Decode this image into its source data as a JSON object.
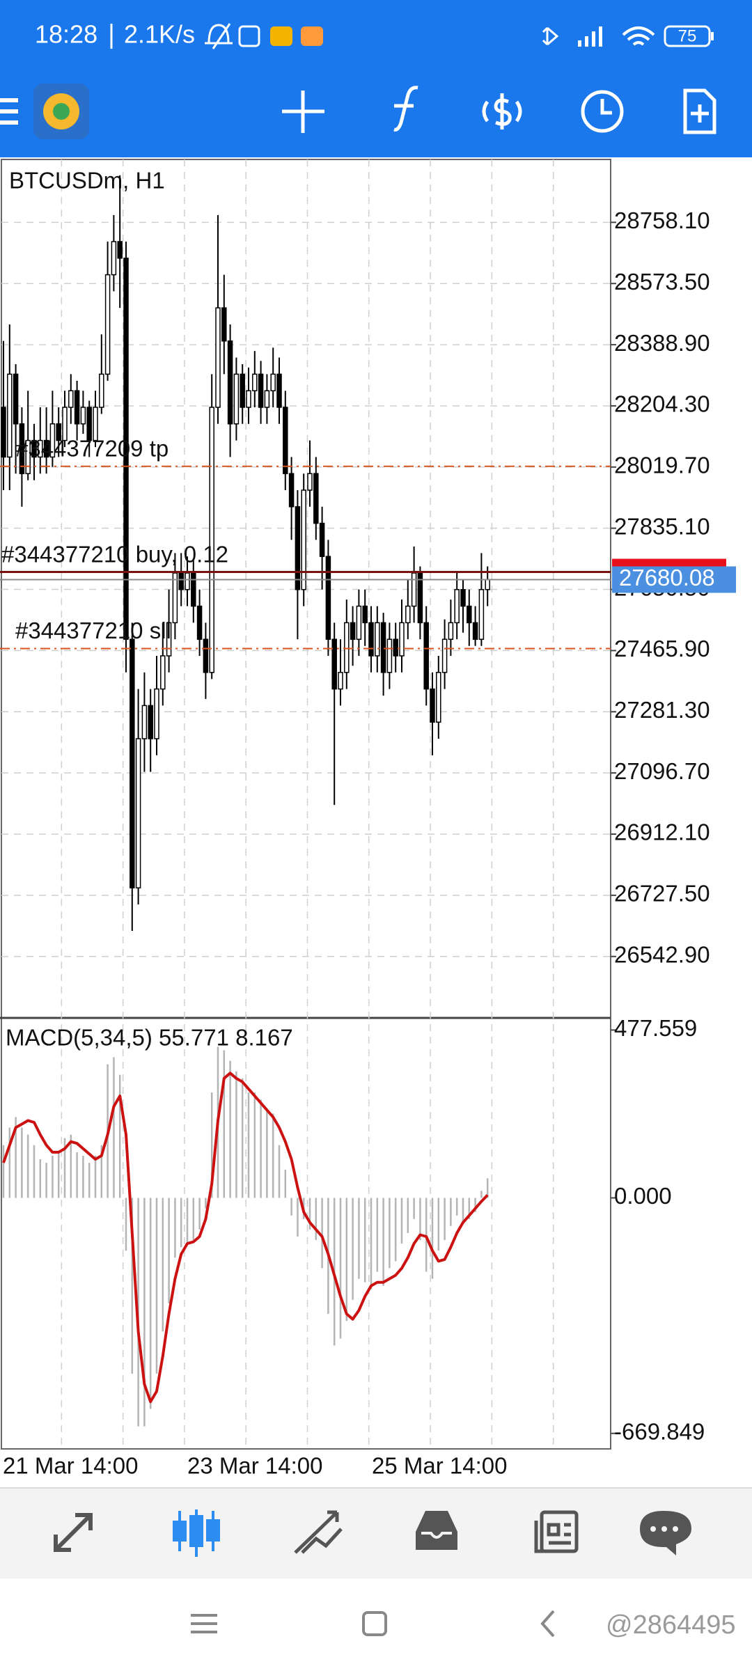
{
  "status_bar": {
    "time": "18:28",
    "network_speed": "2.1K/s",
    "battery": "75"
  },
  "chart_data": [
    {
      "type": "candlestick",
      "title": "BTCUSDm, H1",
      "ohlc": [
        [
          28200,
          28400,
          27950,
          28050
        ],
        [
          28050,
          28450,
          27950,
          28300
        ],
        [
          28300,
          28330,
          28000,
          28150
        ],
        [
          28150,
          28200,
          27900,
          28000
        ],
        [
          28000,
          28250,
          27980,
          28100
        ],
        [
          28100,
          28150,
          27980,
          28050
        ],
        [
          28050,
          28200,
          28000,
          28100
        ],
        [
          28100,
          28200,
          28000,
          28050
        ],
        [
          28050,
          28250,
          28020,
          28150
        ],
        [
          28150,
          28200,
          28050,
          28100
        ],
        [
          28100,
          28250,
          28080,
          28200
        ],
        [
          28200,
          28300,
          28150,
          28250
        ],
        [
          28250,
          28280,
          28100,
          28150
        ],
        [
          28150,
          28250,
          28120,
          28200
        ],
        [
          28200,
          28220,
          28050,
          28100
        ],
        [
          28100,
          28250,
          28080,
          28200
        ],
        [
          28200,
          28420,
          28180,
          28300
        ],
        [
          28300,
          28700,
          28280,
          28600
        ],
        [
          28600,
          28780,
          28550,
          28700
        ],
        [
          28700,
          28900,
          28500,
          28650
        ],
        [
          28650,
          28700,
          27400,
          27500
        ],
        [
          27500,
          27550,
          26620,
          26750
        ],
        [
          26750,
          27350,
          26700,
          27200
        ],
        [
          27200,
          27400,
          27100,
          27300
        ],
        [
          27300,
          27350,
          27100,
          27200
        ],
        [
          27200,
          27450,
          27150,
          27350
        ],
        [
          27350,
          27550,
          27300,
          27450
        ],
        [
          27450,
          27650,
          27400,
          27550
        ],
        [
          27550,
          27760,
          27500,
          27700
        ],
        [
          27700,
          27760,
          27600,
          27650
        ],
        [
          27650,
          27750,
          27600,
          27700
        ],
        [
          27700,
          27740,
          27550,
          27600
        ],
        [
          27600,
          27650,
          27450,
          27500
        ],
        [
          27500,
          27550,
          27320,
          27400
        ],
        [
          27400,
          28300,
          27380,
          28200
        ],
        [
          28200,
          28780,
          28150,
          28500
        ],
        [
          28500,
          28600,
          28300,
          28400
        ],
        [
          28400,
          28450,
          28050,
          28150
        ],
        [
          28150,
          28350,
          28100,
          28300
        ],
        [
          28300,
          28330,
          28150,
          28200
        ],
        [
          28200,
          28320,
          28150,
          28250
        ],
        [
          28250,
          28370,
          28200,
          28300
        ],
        [
          28300,
          28340,
          28150,
          28200
        ],
        [
          28200,
          28300,
          28150,
          28250
        ],
        [
          28250,
          28380,
          28200,
          28300
        ],
        [
          28300,
          28350,
          28150,
          28200
        ],
        [
          28200,
          28250,
          27950,
          28000
        ],
        [
          28000,
          28050,
          27800,
          27900
        ],
        [
          27900,
          27950,
          27500,
          27650
        ],
        [
          27650,
          28000,
          27600,
          27950
        ],
        [
          27950,
          28100,
          27900,
          28000
        ],
        [
          28000,
          28050,
          27800,
          27850
        ],
        [
          27850,
          27900,
          27650,
          27750
        ],
        [
          27750,
          27800,
          27450,
          27500
        ],
        [
          27500,
          27550,
          27000,
          27350
        ],
        [
          27350,
          27500,
          27300,
          27400
        ],
        [
          27400,
          27620,
          27350,
          27550
        ],
        [
          27550,
          27600,
          27420,
          27500
        ],
        [
          27500,
          27650,
          27450,
          27600
        ],
        [
          27600,
          27650,
          27480,
          27550
        ],
        [
          27550,
          27600,
          27400,
          27450
        ],
        [
          27450,
          27600,
          27400,
          27550
        ],
        [
          27550,
          27580,
          27330,
          27400
        ],
        [
          27400,
          27550,
          27350,
          27500
        ],
        [
          27500,
          27550,
          27400,
          27450
        ],
        [
          27450,
          27620,
          27400,
          27550
        ],
        [
          27550,
          27680,
          27500,
          27600
        ],
        [
          27600,
          27780,
          27550,
          27700
        ],
        [
          27700,
          27720,
          27500,
          27550
        ],
        [
          27550,
          27600,
          27300,
          27350
        ],
        [
          27350,
          27400,
          27150,
          27250
        ],
        [
          27250,
          27450,
          27200,
          27400
        ],
        [
          27400,
          27560,
          27350,
          27500
        ],
        [
          27500,
          27620,
          27450,
          27550
        ],
        [
          27550,
          27700,
          27500,
          27650
        ],
        [
          27650,
          27680,
          27520,
          27600
        ],
        [
          27600,
          27650,
          27480,
          27550
        ],
        [
          27550,
          27600,
          27480,
          27500
        ],
        [
          27500,
          27760,
          27480,
          27650
        ],
        [
          27650,
          27720,
          27600,
          27680.08
        ]
      ],
      "up_color": "#ffffff",
      "down_color": "#000000",
      "ylim": [
        26359.6,
        28947.9
      ],
      "yticks": [
        {
          "value": 28758.1,
          "label": "28758.10"
        },
        {
          "value": 28573.5,
          "label": "28573.50"
        },
        {
          "value": 28388.9,
          "label": "28388.90"
        },
        {
          "value": 28204.3,
          "label": "28204.30"
        },
        {
          "value": 28019.7,
          "label": "28019.70"
        },
        {
          "value": 27835.1,
          "label": "27835.10"
        },
        {
          "value": 27650.5,
          "label": "27650.50"
        },
        {
          "value": 27465.9,
          "label": "27465.90"
        },
        {
          "value": 27281.3,
          "label": "27281.30"
        },
        {
          "value": 27096.7,
          "label": "27096.70"
        },
        {
          "value": 26912.1,
          "label": "26912.10"
        },
        {
          "value": 26727.5,
          "label": "26727.50"
        },
        {
          "value": 26542.9,
          "label": "26542.90"
        }
      ],
      "grid": true,
      "levels": [
        {
          "label": "#344377209 tp",
          "value": 28022,
          "color": "#d9531e",
          "dashed": true
        },
        {
          "label": "#344377210 buy, 0.12",
          "value": 27703,
          "color": "#7a1010",
          "dashed": false
        },
        {
          "label": "#344377210 sll",
          "value": 27472,
          "color": "#d9531e",
          "dashed": true
        }
      ],
      "last_price": 27680.08
    },
    {
      "type": "macd",
      "title": "MACD(5,34,5) 55.771 8.167",
      "histogram_color": "#b4b4b4",
      "signal_color": "#cc1111",
      "histogram": [
        150,
        200,
        230,
        200,
        180,
        150,
        110,
        100,
        120,
        130,
        170,
        180,
        130,
        120,
        100,
        120,
        150,
        380,
        400,
        350,
        -150,
        -500,
        -650,
        -650,
        -600,
        -500,
        -380,
        -300,
        -170,
        -140,
        -130,
        -120,
        -90,
        -30,
        300,
        430,
        420,
        390,
        360,
        340,
        300,
        300,
        280,
        250,
        240,
        150,
        80,
        -50,
        -110,
        -60,
        -90,
        -120,
        -200,
        -330,
        -420,
        -400,
        -350,
        -290,
        -230,
        -240,
        -260,
        -210,
        -250,
        -200,
        -180,
        -130,
        -100,
        -60,
        -120,
        -210,
        -230,
        -150,
        -120,
        -80,
        -50,
        -70,
        -60,
        -40,
        20,
        55.771
      ],
      "signal": [
        100,
        150,
        200,
        210,
        220,
        215,
        180,
        150,
        130,
        130,
        140,
        160,
        155,
        140,
        125,
        110,
        120,
        180,
        260,
        290,
        180,
        -100,
        -380,
        -530,
        -580,
        -550,
        -450,
        -330,
        -230,
        -160,
        -130,
        -125,
        -110,
        -60,
        40,
        220,
        340,
        355,
        340,
        330,
        310,
        290,
        270,
        250,
        230,
        200,
        160,
        110,
        30,
        -40,
        -70,
        -90,
        -110,
        -160,
        -220,
        -280,
        -330,
        -345,
        -320,
        -280,
        -250,
        -240,
        -240,
        -230,
        -220,
        -200,
        -170,
        -130,
        -105,
        -110,
        -150,
        -180,
        -175,
        -140,
        -100,
        -70,
        -50,
        -30,
        -10,
        8.167
      ],
      "ylim": [
        -714,
        512
      ],
      "yticks": [
        477.559,
        {
          "value": 0,
          "label": "0.000"
        },
        -669.849
      ]
    }
  ],
  "time_axis": {
    "labels": [
      "21 Mar 14:00",
      "23 Mar 14:00",
      "25 Mar 14:00"
    ]
  },
  "watermark": "@2864495"
}
